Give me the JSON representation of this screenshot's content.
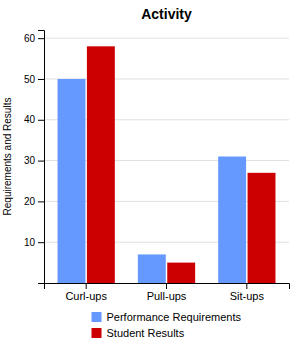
{
  "chart_data": {
    "type": "bar",
    "title": "Activity",
    "categories": [
      "Curl-ups",
      "Pull-ups",
      "Sit-ups"
    ],
    "series": [
      {
        "name": "Performance Requirements",
        "color": "#6699FF",
        "values": [
          50,
          7,
          31
        ]
      },
      {
        "name": "Student Results",
        "color": "#CC0000",
        "values": [
          58,
          5,
          27
        ]
      }
    ],
    "ylabel": "Requirements and Results",
    "ylim": [
      0,
      62
    ],
    "yticks": [
      10,
      20,
      30,
      40,
      50,
      60
    ],
    "grid": true,
    "legend": "bottom"
  }
}
